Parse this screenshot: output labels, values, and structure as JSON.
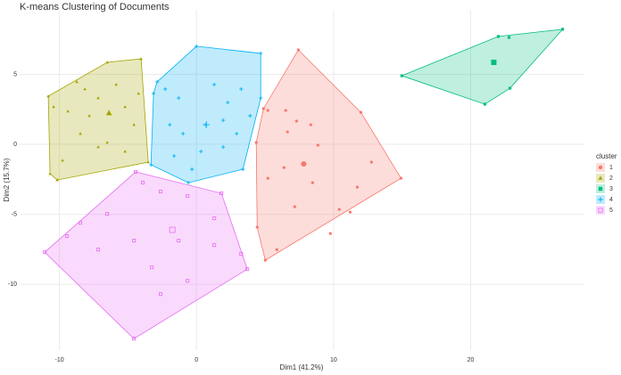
{
  "chart_data": {
    "type": "cluster",
    "title": "K-means Clustering of Documents",
    "xlabel": "Dim1 (41.2%)",
    "ylabel": "Dim2 (15.7%)",
    "legend_title": "cluster",
    "xlim": [
      -12.9,
      28.3
    ],
    "ylim": [
      -14.7,
      9.55
    ],
    "xticks": [
      -10,
      0,
      10,
      20
    ],
    "yticks": [
      5,
      0,
      -5,
      -10
    ],
    "grid": true,
    "series": [
      {
        "name": "1",
        "color": "#F8766D",
        "marker": "circle",
        "x": [
          5.21,
          6.51,
          8.34,
          7.3,
          8.86,
          6.38,
          5.21,
          8.47,
          11.73,
          10.42,
          11.21,
          7.17,
          5.86,
          9.77,
          6.64,
          12.77
        ],
        "y": [
          2.42,
          2.42,
          1.4,
          1.66,
          -0.06,
          -1.66,
          -2.42,
          -2.74,
          -3.06,
          -4.65,
          -4.84,
          -4.46,
          -7.52,
          -6.37,
          0.89,
          -1.27
        ],
        "hull_x": [
          7.43,
          11.99,
          14.92,
          5.02,
          4.43,
          4.36,
          4.89
        ],
        "hull_y": [
          6.75,
          2.29,
          -2.42,
          -8.28,
          -5.92,
          0.13,
          2.55
        ],
        "center_x": 7.82,
        "center_y": -1.4
      },
      {
        "name": "2",
        "color": "#A3A500",
        "marker": "triangle",
        "x": [
          -10.42,
          -9.38,
          -8.73,
          -8.14,
          -7.17,
          -5.86,
          -5.21,
          -4.56,
          -8.47,
          -7.17,
          -5.21,
          -9.77,
          -6.51,
          -4.23,
          -7.82
        ],
        "y": [
          2.68,
          2.36,
          4.46,
          3.95,
          3.31,
          4.27,
          2.68,
          1.4,
          0.76,
          -0.19,
          -0.51,
          -1.15,
          0.13,
          3.63,
          2.04
        ],
        "hull_x": [
          -10.81,
          -6.51,
          -4.04,
          -3.52,
          -10.16,
          -10.68
        ],
        "hull_y": [
          3.44,
          5.86,
          6.11,
          -1.27,
          -2.55,
          -2.1
        ],
        "center_x": -6.38,
        "center_y": 2.23
      },
      {
        "name": "3",
        "color": "#00BF7D",
        "marker": "square",
        "x": [
          22.8
        ],
        "y": [
          7.64
        ],
        "hull_x": [
          14.98,
          22.02,
          26.71,
          22.87,
          21.04
        ],
        "hull_y": [
          4.9,
          7.71,
          8.22,
          4.01,
          2.87
        ],
        "center_x": 21.69,
        "center_y": 5.86
      },
      {
        "name": "4",
        "color": "#00B0F6",
        "marker": "cross",
        "x": [
          -2.28,
          -1.3,
          1.3,
          2.28,
          3.26,
          -1.95,
          -0.98,
          0.65,
          1.95,
          2.93,
          -1.63,
          0.33,
          1.95,
          -0.33,
          3.91
        ],
        "y": [
          3.95,
          3.31,
          4.27,
          2.99,
          3.95,
          1.4,
          0.76,
          1.4,
          1.72,
          0.76,
          -0.83,
          -0.51,
          -0.19,
          -1.78,
          2.04
        ],
        "hull_x": [
          -2.87,
          0,
          4.69,
          4.69,
          3.39,
          -0.59,
          -3.32,
          -3.13
        ],
        "hull_y": [
          4.46,
          7.01,
          6.5,
          3.31,
          -1.78,
          -2.74,
          -1.46,
          3.63
        ],
        "center_x": 0.72,
        "center_y": 1.4
      },
      {
        "name": "5",
        "color": "#E76BF3",
        "marker": "boxed",
        "x": [
          -3.91,
          -2.61,
          -0.65,
          -8.47,
          -6.51,
          -4.56,
          -1.3,
          1.3,
          3.26,
          -7.17,
          -3.26,
          -0.65,
          -2.61,
          1.3,
          -9.45
        ],
        "y": [
          -2.74,
          -3.38,
          -3.69,
          -5.61,
          -4.97,
          -6.88,
          -6.88,
          -7.2,
          -7.83,
          -7.52,
          -8.79,
          -9.75,
          -10.7,
          -5.29,
          -6.56
        ],
        "hull_x": [
          -4.43,
          1.82,
          3.71,
          -4.56,
          -11.07
        ],
        "hull_y": [
          -1.97,
          -3.5,
          -8.92,
          -13.89,
          -7.71
        ],
        "center_x": -1.76,
        "center_y": -6.11
      }
    ]
  }
}
